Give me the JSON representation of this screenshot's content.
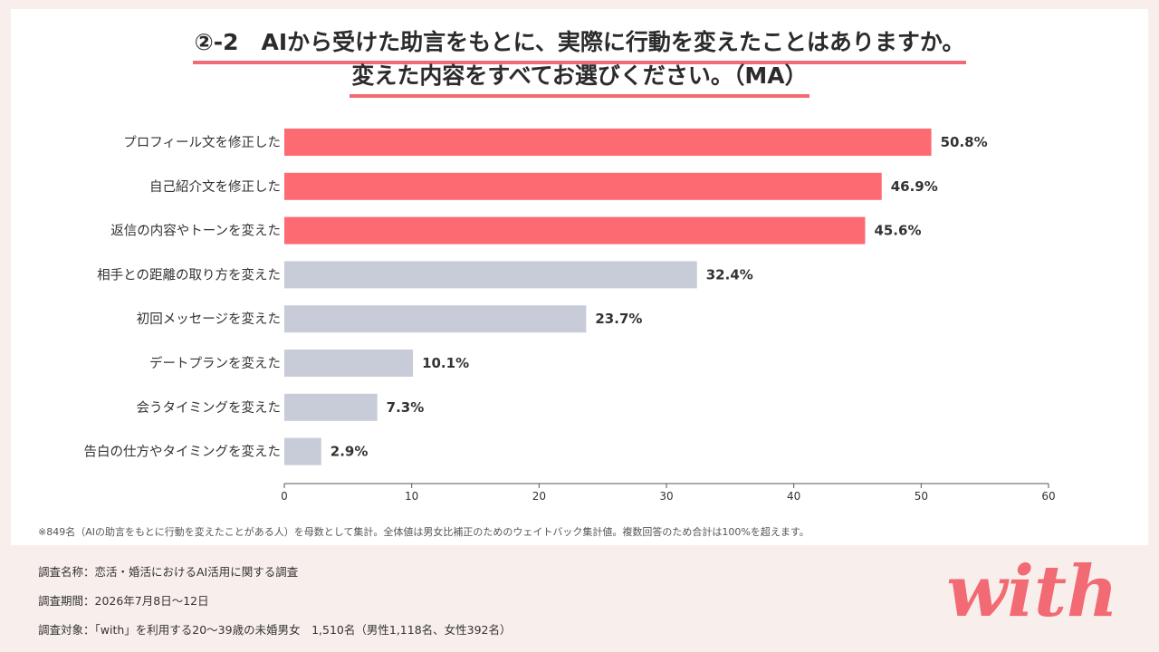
{
  "title_line1": "②-2　AIから受けた助言をもとに、実際に行動を変えたことはありますか。",
  "title_line2": "変えた内容をすべてお選びください。（MA）",
  "footnote": "※849名（AIの助言をもとに行動を変えたことがある人）を母数として集計。全体値は男女比補正のためのウェイトバック集計値。複数回答のため合計は100%を超えます。",
  "survey": {
    "name": "調査名称：恋活・婚活におけるAI活用に関する調査",
    "period": "調査期間：2026年7月8日〜12日",
    "target": "調査対象：「with」を利用する20〜39歳の未婚男女　1,510名（男性1,118名、女性392名）"
  },
  "logo_text": "with",
  "colors": {
    "highlight": "#fd6a72",
    "normal": "#c8ccd8",
    "underline": "#f06b74",
    "logo": "#f26a73"
  },
  "chart_data": {
    "type": "bar",
    "orientation": "horizontal",
    "categories": [
      "プロフィール文を修正した",
      "自己紹介文を修正した",
      "返信の内容やトーンを変えた",
      "相手との距離の取り方を変えた",
      "初回メッセージを変えた",
      "デートプランを変えた",
      "会うタイミングを変えた",
      "告白の仕方やタイミングを変えた"
    ],
    "values": [
      50.8,
      46.9,
      45.6,
      32.4,
      23.7,
      10.1,
      7.3,
      2.9
    ],
    "value_labels": [
      "50.8%",
      "46.9%",
      "45.6%",
      "32.4%",
      "23.7%",
      "10.1%",
      "7.3%",
      "2.9%"
    ],
    "highlighted": [
      true,
      true,
      true,
      false,
      false,
      false,
      false,
      false
    ],
    "xlim": [
      0,
      60
    ],
    "xticks": [
      0,
      10,
      20,
      30,
      40,
      50,
      60
    ],
    "grid": false,
    "legend": "none"
  }
}
